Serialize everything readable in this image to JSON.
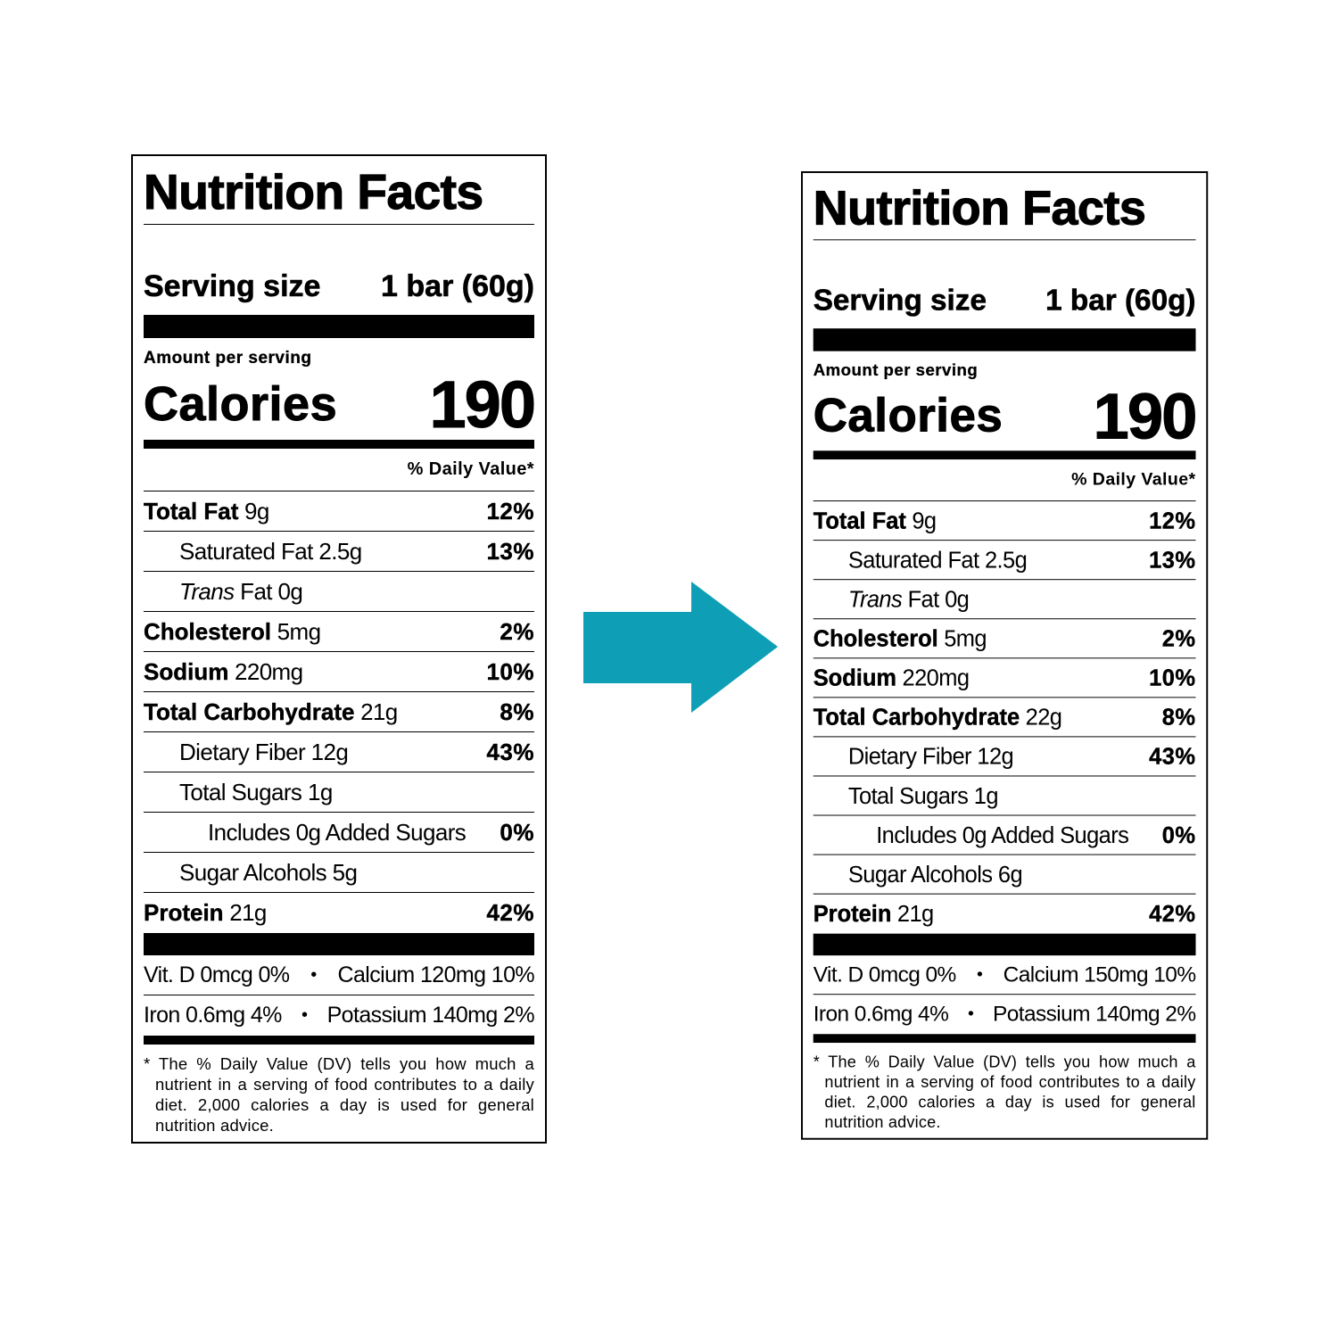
{
  "labels": [
    {
      "title": "Nutrition Facts",
      "serving_label": "Serving size",
      "serving_value": "1 bar (60g)",
      "amount_per_serving": "Amount per serving",
      "calories_label": "Calories",
      "calories": "190",
      "dv_header": "% Daily Value*",
      "rows": [
        {
          "name": "Total Fat",
          "amount": "9g",
          "dv": "12%",
          "subrows": [
            {
              "name": "Saturated Fat",
              "amount": "2.5g",
              "dv": "13%"
            },
            {
              "prefix": "Trans",
              "name": "Fat",
              "amount": "0g"
            }
          ]
        },
        {
          "name": "Cholesterol",
          "amount": "5mg",
          "dv": "2%"
        },
        {
          "name": "Sodium",
          "amount": "220mg",
          "dv": "10%"
        },
        {
          "name": "Total Carbohydrate",
          "amount": "21g",
          "dv": "8%",
          "subrows": [
            {
              "name": "Dietary Fiber",
              "amount": "12g",
              "dv": "43%"
            },
            {
              "name": "Total Sugars",
              "amount": "1g",
              "subrows": [
                {
                  "name": "Includes 0g Added Sugars",
                  "dv": "0%"
                }
              ]
            },
            {
              "name": "Sugar Alcohols",
              "amount": "5g"
            }
          ]
        },
        {
          "name": "Protein",
          "amount": "21g",
          "dv": "42%"
        }
      ],
      "vitamins": [
        [
          "Vit. D 0mcg 0%",
          "Calcium 120mg 10%"
        ],
        [
          "Iron 0.6mg 4%",
          "Potassium 140mg 2%"
        ]
      ],
      "footnote": "* The % Daily Value (DV) tells you how much a nutrient in a serving of food contributes to a daily diet. 2,000 calories a day is used for general nutrition advice."
    },
    {
      "title": "Nutrition Facts",
      "serving_label": "Serving size",
      "serving_value": "1 bar (60g)",
      "amount_per_serving": "Amount per serving",
      "calories_label": "Calories",
      "calories": "190",
      "dv_header": "% Daily Value*",
      "rows": [
        {
          "name": "Total Fat",
          "amount": "9g",
          "dv": "12%",
          "subrows": [
            {
              "name": "Saturated Fat",
              "amount": "2.5g",
              "dv": "13%"
            },
            {
              "prefix": "Trans",
              "name": "Fat",
              "amount": "0g"
            }
          ]
        },
        {
          "name": "Cholesterol",
          "amount": "5mg",
          "dv": "2%"
        },
        {
          "name": "Sodium",
          "amount": "220mg",
          "dv": "10%"
        },
        {
          "name": "Total Carbohydrate",
          "amount": "22g",
          "dv": "8%",
          "subrows": [
            {
              "name": "Dietary Fiber",
              "amount": "12g",
              "dv": "43%"
            },
            {
              "name": "Total Sugars",
              "amount": "1g",
              "subrows": [
                {
                  "name": "Includes 0g Added Sugars",
                  "dv": "0%"
                }
              ]
            },
            {
              "name": "Sugar Alcohols",
              "amount": "6g"
            }
          ]
        },
        {
          "name": "Protein",
          "amount": "21g",
          "dv": "42%"
        }
      ],
      "vitamins": [
        [
          "Vit. D 0mcg 0%",
          "Calcium 150mg 10%"
        ],
        [
          "Iron 0.6mg 4%",
          "Potassium 140mg 2%"
        ]
      ],
      "footnote": "* The % Daily Value (DV) tells you how much a nutrient in a serving of food contributes to a daily diet. 2,000 calories a day is used for general nutrition advice."
    }
  ]
}
